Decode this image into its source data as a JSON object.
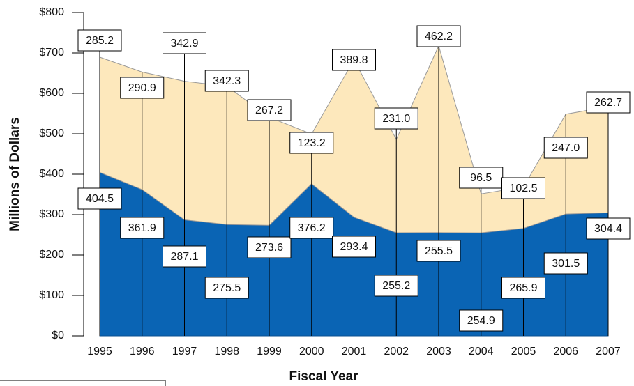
{
  "chart_data": {
    "type": "stacked_area",
    "x_label": "Fiscal Year",
    "y_label": "Millions of Dollars",
    "categories": [
      "1995",
      "1996",
      "1997",
      "1998",
      "1999",
      "2000",
      "2001",
      "2002",
      "2003",
      "2004",
      "2005",
      "2006",
      "2007"
    ],
    "series": [
      {
        "color": "#0a64b4",
        "values": [
          404.5,
          361.9,
          287.1,
          275.5,
          273.6,
          376.2,
          293.4,
          255.2,
          255.5,
          254.9,
          265.9,
          301.5,
          304.4
        ],
        "value_labels": [
          "404.5",
          "361.9",
          "287.1",
          "275.5",
          "273.6",
          "376.2",
          "293.4",
          "255.2",
          "255.5",
          "254.9",
          "265.9",
          "301.5",
          "304.4"
        ]
      },
      {
        "color": "#fde8bc",
        "values": [
          285.2,
          290.9,
          342.9,
          342.3,
          267.2,
          123.2,
          389.8,
          231.0,
          462.2,
          96.5,
          102.5,
          247.0,
          262.7
        ],
        "value_labels": [
          "285.2",
          "290.9",
          "342.9",
          "342.3",
          "267.2",
          "123.2",
          "389.8",
          "231.0",
          "462.2",
          "96.5",
          "102.5",
          "247.0",
          "262.7"
        ]
      }
    ],
    "ylim": [
      0,
      800
    ],
    "yticks": [
      {
        "value": 0,
        "label": "$0"
      },
      {
        "value": 100,
        "label": "$100"
      },
      {
        "value": 200,
        "label": "$200"
      },
      {
        "value": 300,
        "label": "$300"
      },
      {
        "value": 400,
        "label": "$400"
      },
      {
        "value": 500,
        "label": "$500"
      },
      {
        "value": 600,
        "label": "$600"
      },
      {
        "value": 700,
        "label": "$700"
      },
      {
        "value": 800,
        "label": "$800"
      }
    ]
  }
}
